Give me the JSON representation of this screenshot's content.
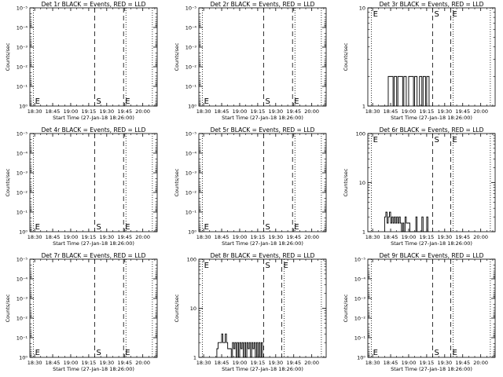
{
  "chart_data": [
    {
      "type": "line",
      "title": "Det 1r BLACK = Events, RED = LLD",
      "xlabel": "Start Time (27-Jan-18 18:26:00)",
      "ylabel": "Counts/sec",
      "x_ticks": [
        "18:30",
        "18:45",
        "19:00",
        "19:15",
        "19:30",
        "19:45",
        "20:00"
      ],
      "y_scale": "log",
      "y_ticks": [
        "10^0",
        "10^-1",
        "10^-2",
        "10^-3",
        "10^-4",
        "10^-5"
      ],
      "ylim": [
        "10^0",
        "10^-5"
      ],
      "markers": [
        {
          "label": "E",
          "time": "18:29",
          "style": "dotted"
        },
        {
          "label": "S",
          "time": "19:20",
          "style": "dashed"
        },
        {
          "label": "E",
          "time": "19:44",
          "style": "dashed"
        },
        {
          "label": "",
          "time": "19:46",
          "style": "dotted"
        },
        {
          "label": "",
          "time": "20:08",
          "style": "dotted"
        }
      ],
      "events": []
    },
    {
      "type": "line",
      "title": "Det 2r BLACK = Events, RED = LLD",
      "xlabel": "Start Time (27-Jan-18 18:26:00)",
      "ylabel": "Counts/sec",
      "x_ticks": [
        "18:30",
        "18:45",
        "19:00",
        "19:15",
        "19:30",
        "19:45",
        "20:00"
      ],
      "y_scale": "log",
      "y_ticks": [
        "10^0",
        "10^-1",
        "10^-2",
        "10^-3",
        "10^-4",
        "10^-5"
      ],
      "ylim": [
        "10^0",
        "10^-5"
      ],
      "markers": [
        {
          "label": "E",
          "time": "18:29",
          "style": "dotted"
        },
        {
          "label": "S",
          "time": "19:20",
          "style": "dashed"
        },
        {
          "label": "E",
          "time": "19:44",
          "style": "dashed"
        },
        {
          "label": "",
          "time": "19:46",
          "style": "dotted"
        },
        {
          "label": "",
          "time": "20:08",
          "style": "dotted"
        }
      ],
      "events": []
    },
    {
      "type": "line",
      "title": "Det 3r BLACK = Events, RED = LLD",
      "xlabel": "Start Time (27-Jan-18 18:26:00)",
      "ylabel": "Counts/sec",
      "x_ticks": [
        "18:30",
        "18:45",
        "19:00",
        "19:15",
        "19:30",
        "19:45",
        "20:00"
      ],
      "y_scale": "log",
      "y_ticks": [
        "1",
        "10"
      ],
      "ylim": [
        1,
        10
      ],
      "markers": [
        {
          "label": "E",
          "time": "18:29",
          "style": "dotted"
        },
        {
          "label": "S",
          "time": "19:20",
          "style": "dashed"
        },
        {
          "label": "E",
          "time": "19:35",
          "style": "dashed"
        },
        {
          "label": "",
          "time": "19:37",
          "style": "dotted"
        },
        {
          "label": "",
          "time": "20:08",
          "style": "dotted"
        }
      ],
      "events": [
        {
          "time": "18:36",
          "value": 1
        },
        {
          "time": "18:43",
          "value": 2
        },
        {
          "time": "18:45",
          "value": 2
        },
        {
          "time": "18:47",
          "value": 1
        },
        {
          "time": "18:48",
          "value": 2
        },
        {
          "time": "18:50",
          "value": 1
        },
        {
          "time": "18:51",
          "value": 2
        },
        {
          "time": "18:53",
          "value": 2
        },
        {
          "time": "18:55",
          "value": 1
        },
        {
          "time": "18:56",
          "value": 2
        },
        {
          "time": "18:58",
          "value": 1
        },
        {
          "time": "19:00",
          "value": 2
        },
        {
          "time": "19:02",
          "value": 2
        },
        {
          "time": "19:04",
          "value": 1
        },
        {
          "time": "19:05",
          "value": 2
        },
        {
          "time": "19:07",
          "value": 1
        },
        {
          "time": "19:09",
          "value": 2
        },
        {
          "time": "19:11",
          "value": 1
        },
        {
          "time": "19:12",
          "value": 2
        },
        {
          "time": "19:14",
          "value": 1
        },
        {
          "time": "19:15",
          "value": 2
        },
        {
          "time": "19:17",
          "value": 1
        }
      ]
    },
    {
      "type": "line",
      "title": "Det 4r BLACK = Events, RED = LLD",
      "xlabel": "Start Time (27-Jan-18 18:26:00)",
      "ylabel": "Counts/sec",
      "x_ticks": [
        "18:30",
        "18:45",
        "19:00",
        "19:15",
        "19:30",
        "19:45",
        "20:00"
      ],
      "y_scale": "log",
      "y_ticks": [
        "10^0",
        "10^-1",
        "10^-2",
        "10^-3",
        "10^-4",
        "10^-5"
      ],
      "ylim": [
        "10^0",
        "10^-5"
      ],
      "markers": [
        {
          "label": "E",
          "time": "18:29",
          "style": "dotted"
        },
        {
          "label": "S",
          "time": "19:20",
          "style": "dashed"
        },
        {
          "label": "E",
          "time": "19:44",
          "style": "dashed"
        },
        {
          "label": "",
          "time": "19:46",
          "style": "dotted"
        },
        {
          "label": "",
          "time": "20:08",
          "style": "dotted"
        }
      ],
      "events": []
    },
    {
      "type": "line",
      "title": "Det 5r BLACK = Events, RED = LLD",
      "xlabel": "Start Time (27-Jan-18 18:26:00)",
      "ylabel": "Counts/sec",
      "x_ticks": [
        "18:30",
        "18:45",
        "19:00",
        "19:15",
        "19:30",
        "19:45",
        "20:00"
      ],
      "y_scale": "log",
      "y_ticks": [
        "10^0",
        "10^-1",
        "10^-2",
        "10^-3",
        "10^-4",
        "10^-5"
      ],
      "ylim": [
        "10^0",
        "10^-5"
      ],
      "markers": [
        {
          "label": "E",
          "time": "18:29",
          "style": "dotted"
        },
        {
          "label": "S",
          "time": "19:20",
          "style": "dashed"
        },
        {
          "label": "E",
          "time": "19:44",
          "style": "dashed"
        },
        {
          "label": "",
          "time": "19:46",
          "style": "dotted"
        },
        {
          "label": "",
          "time": "20:08",
          "style": "dotted"
        }
      ],
      "events": []
    },
    {
      "type": "line",
      "title": "Det 6r BLACK = Events, RED = LLD",
      "xlabel": "Start Time (27-Jan-18 18:26:00)",
      "ylabel": "Counts/sec",
      "x_ticks": [
        "18:30",
        "18:45",
        "19:00",
        "19:15",
        "19:30",
        "19:45",
        "20:00"
      ],
      "y_scale": "log",
      "y_ticks": [
        "1",
        "10",
        "100"
      ],
      "ylim": [
        1,
        100
      ],
      "markers": [
        {
          "label": "E",
          "time": "18:29",
          "style": "dotted"
        },
        {
          "label": "S",
          "time": "19:20",
          "style": "dashed"
        },
        {
          "label": "E",
          "time": "19:35",
          "style": "dashed"
        },
        {
          "label": "",
          "time": "19:37",
          "style": "dotted"
        },
        {
          "label": "",
          "time": "20:08",
          "style": "dotted"
        }
      ],
      "events": [
        {
          "time": "18:40",
          "value": 2
        },
        {
          "time": "18:41",
          "value": 2.5
        },
        {
          "time": "18:42",
          "value": 1.5
        },
        {
          "time": "18:43",
          "value": 2
        },
        {
          "time": "18:44",
          "value": 2.5
        },
        {
          "time": "18:45",
          "value": 1.5
        },
        {
          "time": "18:46",
          "value": 2
        },
        {
          "time": "18:47",
          "value": 1.5
        },
        {
          "time": "18:48",
          "value": 2
        },
        {
          "time": "18:49",
          "value": 1.5
        },
        {
          "time": "18:50",
          "value": 2
        },
        {
          "time": "18:51",
          "value": 1.5
        },
        {
          "time": "18:52",
          "value": 2
        },
        {
          "time": "18:53",
          "value": 1.5
        },
        {
          "time": "18:54",
          "value": 1
        },
        {
          "time": "18:55",
          "value": 1.5
        },
        {
          "time": "18:56",
          "value": 1
        },
        {
          "time": "18:57",
          "value": 2
        },
        {
          "time": "18:58",
          "value": 1.5
        },
        {
          "time": "19:01",
          "value": 1
        },
        {
          "time": "19:06",
          "value": 2
        },
        {
          "time": "19:07",
          "value": 1
        },
        {
          "time": "19:11",
          "value": 2
        },
        {
          "time": "19:12",
          "value": 1
        },
        {
          "time": "19:15",
          "value": 2
        },
        {
          "time": "19:16",
          "value": 1
        }
      ]
    },
    {
      "type": "line",
      "title": "Det 7r BLACK = Events, RED = LLD",
      "xlabel": "Start Time (27-Jan-18 18:26:00)",
      "ylabel": "Counts/sec",
      "x_ticks": [
        "18:30",
        "18:45",
        "19:00",
        "19:15",
        "19:30",
        "19:45",
        "20:00"
      ],
      "y_scale": "log",
      "y_ticks": [
        "10^0",
        "10^-1",
        "10^-2",
        "10^-3",
        "10^-4",
        "10^-5"
      ],
      "ylim": [
        "10^0",
        "10^-5"
      ],
      "markers": [
        {
          "label": "E",
          "time": "18:29",
          "style": "dotted"
        },
        {
          "label": "S",
          "time": "19:20",
          "style": "dashed"
        },
        {
          "label": "E",
          "time": "19:44",
          "style": "dashed"
        },
        {
          "label": "",
          "time": "19:46",
          "style": "dotted"
        },
        {
          "label": "",
          "time": "20:08",
          "style": "dotted"
        }
      ],
      "events": []
    },
    {
      "type": "line",
      "title": "Det 8r BLACK = Events, RED = LLD",
      "xlabel": "Start Time (27-Jan-18 18:26:00)",
      "ylabel": "Counts/sec",
      "x_ticks": [
        "18:30",
        "18:45",
        "19:00",
        "19:15",
        "19:30",
        "19:45",
        "20:00"
      ],
      "y_scale": "log",
      "y_ticks": [
        "1",
        "10",
        "100"
      ],
      "ylim": [
        1,
        100
      ],
      "markers": [
        {
          "label": "E",
          "time": "18:29",
          "style": "dotted"
        },
        {
          "label": "S",
          "time": "19:20",
          "style": "dashed"
        },
        {
          "label": "E",
          "time": "19:35",
          "style": "dashed"
        },
        {
          "label": "",
          "time": "19:37",
          "style": "dotted"
        },
        {
          "label": "",
          "time": "20:08",
          "style": "dotted"
        }
      ],
      "events": [
        {
          "time": "18:41",
          "value": 1.5
        },
        {
          "time": "18:42",
          "value": 2
        },
        {
          "time": "18:44",
          "value": 2
        },
        {
          "time": "18:45",
          "value": 3
        },
        {
          "time": "18:46",
          "value": 2
        },
        {
          "time": "18:48",
          "value": 3
        },
        {
          "time": "18:49",
          "value": 2
        },
        {
          "time": "18:50",
          "value": 1.5
        },
        {
          "time": "18:52",
          "value": 1.5
        },
        {
          "time": "18:53",
          "value": 1
        },
        {
          "time": "18:54",
          "value": 2
        },
        {
          "time": "18:55",
          "value": 1.5
        },
        {
          "time": "18:56",
          "value": 2
        },
        {
          "time": "18:57",
          "value": 1
        },
        {
          "time": "18:58",
          "value": 2
        },
        {
          "time": "18:59",
          "value": 1
        },
        {
          "time": "19:00",
          "value": 2
        },
        {
          "time": "19:01",
          "value": 1.5
        },
        {
          "time": "19:02",
          "value": 2
        },
        {
          "time": "19:03",
          "value": 1
        },
        {
          "time": "19:04",
          "value": 2
        },
        {
          "time": "19:05",
          "value": 1
        },
        {
          "time": "19:06",
          "value": 2
        },
        {
          "time": "19:07",
          "value": 1.5
        },
        {
          "time": "19:08",
          "value": 2
        },
        {
          "time": "19:09",
          "value": 1
        },
        {
          "time": "19:10",
          "value": 2
        },
        {
          "time": "19:11",
          "value": 1.5
        },
        {
          "time": "19:12",
          "value": 2
        },
        {
          "time": "19:13",
          "value": 1
        },
        {
          "time": "19:14",
          "value": 2
        },
        {
          "time": "19:15",
          "value": 1
        },
        {
          "time": "19:16",
          "value": 2
        },
        {
          "time": "19:17",
          "value": 1
        },
        {
          "time": "19:18",
          "value": 2
        },
        {
          "time": "19:19",
          "value": 1
        }
      ]
    },
    {
      "type": "line",
      "title": "Det 9r BLACK = Events, RED = LLD",
      "xlabel": "Start Time (27-Jan-18 18:26:00)",
      "ylabel": "Counts/sec",
      "x_ticks": [
        "18:30",
        "18:45",
        "19:00",
        "19:15",
        "19:30",
        "19:45",
        "20:00"
      ],
      "y_scale": "log",
      "y_ticks": [
        "10^0",
        "10^-1",
        "10^-2",
        "10^-3",
        "10^-4",
        "10^-5"
      ],
      "ylim": [
        "10^0",
        "10^-5"
      ],
      "markers": [
        {
          "label": "E",
          "time": "18:29",
          "style": "dotted"
        },
        {
          "label": "S",
          "time": "19:20",
          "style": "dashed"
        },
        {
          "label": "E",
          "time": "19:35",
          "style": "dashed"
        },
        {
          "label": "",
          "time": "19:37",
          "style": "dotted"
        },
        {
          "label": "",
          "time": "20:08",
          "style": "dotted"
        }
      ],
      "events": []
    }
  ]
}
